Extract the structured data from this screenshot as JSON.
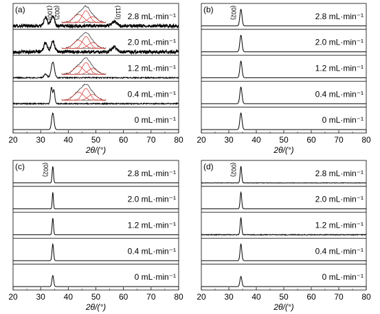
{
  "figure": {
    "panels": [
      {
        "label": "(a)",
        "peak_labels": [
          "(100)",
          "(002)",
          "(110)"
        ],
        "rows": [
          "2.8 mL·min⁻¹",
          "2.0 mL·min⁻¹",
          "1.2 mL·min⁻¹",
          "0.4 mL·min⁻¹",
          "0 mL·min⁻¹"
        ],
        "x_ticks": [
          "20",
          "30",
          "40",
          "50",
          "60",
          "70",
          "80"
        ],
        "xlabel": "2θ/(°)",
        "has_insets": true
      },
      {
        "label": "(b)",
        "peak_labels": [
          "(002)"
        ],
        "rows": [
          "2.8 mL·min⁻¹",
          "2.0 mL·min⁻¹",
          "1.2 mL·min⁻¹",
          "0.4 mL·min⁻¹",
          "0 mL·min⁻¹"
        ],
        "x_ticks": [
          "20",
          "30",
          "40",
          "50",
          "60",
          "70",
          "80"
        ],
        "xlabel": "2θ/(°)",
        "has_insets": false
      },
      {
        "label": "(c)",
        "peak_labels": [
          "(002)"
        ],
        "rows": [
          "2.8 mL·min⁻¹",
          "2.0 mL·min⁻¹",
          "1.2 mL·min⁻¹",
          "0.4 mL·min⁻¹",
          "0 mL·min⁻¹"
        ],
        "x_ticks": [
          "20",
          "30",
          "40",
          "50",
          "60",
          "70",
          "80"
        ],
        "xlabel": "2θ/(°)",
        "has_insets": false
      },
      {
        "label": "(d)",
        "peak_labels": [
          "(002)"
        ],
        "rows": [
          "2.8 mL·min⁻¹",
          "2.0 mL·min⁻¹",
          "1.2 mL·min⁻¹",
          "0.4 mL·min⁻¹",
          "0 mL·min⁻¹"
        ],
        "x_ticks": [
          "20",
          "30",
          "40",
          "50",
          "60",
          "70",
          "80"
        ],
        "xlabel": "2θ/(°)",
        "has_insets": false
      }
    ]
  },
  "chart_data": [
    {
      "type": "line",
      "panel": "(a)",
      "xlabel": "2θ/(°)",
      "xlim": [
        20,
        80
      ],
      "x_ticks": [
        20,
        30,
        40,
        50,
        60,
        70,
        80
      ],
      "y_scale": "offset stack, arbitrary intensity",
      "series": [
        {
          "name": "2.8 mL·min⁻¹",
          "noise": 0.08,
          "peaks": [
            {
              "x": 31.8,
              "h": 0.45,
              "w": 0.9
            },
            {
              "x": 34.4,
              "h": 0.55,
              "w": 0.9
            },
            {
              "x": 56.6,
              "h": 0.22,
              "w": 1.4
            }
          ]
        },
        {
          "name": "2.0 mL·min⁻¹",
          "noise": 0.08,
          "peaks": [
            {
              "x": 31.8,
              "h": 0.5,
              "w": 0.9
            },
            {
              "x": 34.4,
              "h": 0.6,
              "w": 0.9
            },
            {
              "x": 56.6,
              "h": 0.28,
              "w": 1.3
            }
          ]
        },
        {
          "name": "1.2 mL·min⁻¹",
          "noise": 0.03,
          "peaks": [
            {
              "x": 31.8,
              "h": 0.2,
              "w": 0.8
            },
            {
              "x": 34.4,
              "h": 0.85,
              "w": 0.8
            }
          ]
        },
        {
          "name": "0.4 mL·min⁻¹",
          "noise": 0.03,
          "peaks": [
            {
              "x": 33.9,
              "h": 0.9,
              "w": 0.45
            },
            {
              "x": 34.8,
              "h": 0.75,
              "w": 0.45
            }
          ]
        },
        {
          "name": "0 mL·min⁻¹",
          "noise": 0.0,
          "peaks": [
            {
              "x": 34.4,
              "h": 0.9,
              "w": 0.6
            }
          ]
        }
      ],
      "insets": true
    },
    {
      "type": "line",
      "panel": "(b)",
      "xlabel": "2θ/(°)",
      "xlim": [
        20,
        80
      ],
      "x_ticks": [
        20,
        30,
        40,
        50,
        60,
        70,
        80
      ],
      "y_scale": "offset stack, arbitrary intensity",
      "series": [
        {
          "name": "2.8 mL·min⁻¹",
          "noise": 0.0,
          "peaks": [
            {
              "x": 34.4,
              "h": 0.9,
              "w": 0.55
            }
          ]
        },
        {
          "name": "2.0 mL·min⁻¹",
          "noise": 0.0,
          "peaks": [
            {
              "x": 34.4,
              "h": 0.9,
              "w": 0.55
            }
          ]
        },
        {
          "name": "1.2 mL·min⁻¹",
          "noise": 0.0,
          "peaks": [
            {
              "x": 34.4,
              "h": 0.9,
              "w": 0.55
            }
          ]
        },
        {
          "name": "0.4 mL·min⁻¹",
          "noise": 0.0,
          "peaks": [
            {
              "x": 34.4,
              "h": 0.9,
              "w": 0.55
            }
          ]
        },
        {
          "name": "0 mL·min⁻¹",
          "noise": 0.0,
          "peaks": [
            {
              "x": 34.4,
              "h": 0.9,
              "w": 0.55
            }
          ]
        }
      ],
      "insets": false
    },
    {
      "type": "line",
      "panel": "(c)",
      "xlabel": "2θ/(°)",
      "xlim": [
        20,
        80
      ],
      "x_ticks": [
        20,
        30,
        40,
        50,
        60,
        70,
        80
      ],
      "y_scale": "offset stack, arbitrary intensity",
      "series": [
        {
          "name": "2.8 mL·min⁻¹",
          "noise": 0.0,
          "peaks": [
            {
              "x": 34.4,
              "h": 0.9,
              "w": 0.35
            }
          ]
        },
        {
          "name": "2.0 mL·min⁻¹",
          "noise": 0.0,
          "peaks": [
            {
              "x": 34.4,
              "h": 0.9,
              "w": 0.3
            }
          ]
        },
        {
          "name": "1.2 mL·min⁻¹",
          "noise": 0.0,
          "peaks": [
            {
              "x": 34.4,
              "h": 0.9,
              "w": 0.35
            }
          ]
        },
        {
          "name": "0.4 mL·min⁻¹",
          "noise": 0.0,
          "peaks": [
            {
              "x": 34.4,
              "h": 0.9,
              "w": 0.4
            }
          ]
        },
        {
          "name": "0 mL·min⁻¹",
          "noise": 0.0,
          "peaks": [
            {
              "x": 34.4,
              "h": 0.6,
              "w": 0.45
            }
          ]
        }
      ],
      "insets": false
    },
    {
      "type": "line",
      "panel": "(d)",
      "xlabel": "2θ/(°)",
      "xlim": [
        20,
        80
      ],
      "x_ticks": [
        20,
        30,
        40,
        50,
        60,
        70,
        80
      ],
      "y_scale": "offset stack, arbitrary intensity",
      "series": [
        {
          "name": "2.8 mL·min⁻¹",
          "noise": 0.01,
          "peaks": [
            {
              "x": 34.4,
              "h": 0.9,
              "w": 0.4
            }
          ]
        },
        {
          "name": "2.0 mL·min⁻¹",
          "noise": 0.0,
          "peaks": [
            {
              "x": 34.4,
              "h": 0.9,
              "w": 0.4
            }
          ]
        },
        {
          "name": "1.2 mL·min⁻¹",
          "noise": 0.02,
          "peaks": [
            {
              "x": 34.4,
              "h": 0.9,
              "w": 0.4
            }
          ]
        },
        {
          "name": "0.4 mL·min⁻¹",
          "noise": 0.0,
          "peaks": [
            {
              "x": 34.4,
              "h": 0.9,
              "w": 0.45
            }
          ]
        },
        {
          "name": "0 mL·min⁻¹",
          "noise": 0.0,
          "peaks": [
            {
              "x": 34.4,
              "h": 0.55,
              "w": 0.5
            }
          ]
        }
      ],
      "insets": false
    }
  ]
}
